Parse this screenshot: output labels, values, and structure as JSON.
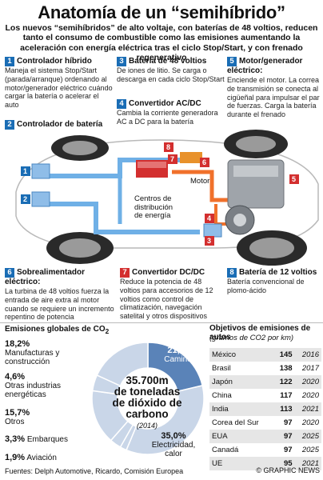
{
  "header": {
    "title": "Anatomía de un “semihíbrido”",
    "subtitle": "Los nuevos “semihíbridos” de alto voltaje, con baterías de 48 voltios, reducen tanto el consumo de combustible como las emisiones aumentando la aceleración con energía eléctrica tras el ciclo Stop/Start, y con frenado regenerativo"
  },
  "components": [
    {
      "num": "1",
      "title": "Controlador híbrido",
      "body": "Maneja el sistema Stop/Start (parada/arranque) ordenando al motor/generador eléctrico cuándo cargar la batería o acelerar el auto"
    },
    {
      "num": "2",
      "title": "Controlador de batería",
      "body": ""
    },
    {
      "num": "3",
      "title": "Batería de 48 voltios",
      "body": "De iones de litio. Se carga o descarga en cada ciclo Stop/Start"
    },
    {
      "num": "4",
      "title": "Convertidor AC/DC",
      "body": "Cambia la corriente generadora AC a DC para la batería"
    },
    {
      "num": "5",
      "title": "Motor/generador eléctrico:",
      "body": "Enciende el motor. La correa de transmisión se conecta al cigüeñal para impulsar el par de fuerzas. Carga la batería durante el frenado"
    },
    {
      "num": "6",
      "title": "Sobrealimentador eléctrico:",
      "body": "La turbina de 48 voltios fuerza la entrada de aire extra al motor cuando se requiere un incremento repentino de potencia"
    },
    {
      "num": "7",
      "title": "Convertidor DC/DC",
      "body": "Reduce la potencia de 48 voltios para accesorios de 12 voltios como control de climatización, navegación satelital y otros dispositivos"
    },
    {
      "num": "8",
      "title": "Batería de 12 voltios",
      "body": "Batería convencional de plomo-ácido"
    }
  ],
  "diagram": {
    "motor_label": "Motor",
    "distribution_label": "Centros de distribución de energía",
    "markers": [
      "1",
      "2",
      "3",
      "4",
      "5",
      "6",
      "7",
      "8"
    ],
    "watermark": "GRAPHIC NEWS"
  },
  "emissions": {
    "title": "Emisiones globales de CO",
    "title_sub": "2",
    "center_value": "35.700m",
    "center_text": "de toneladas de dióxido de carbono",
    "center_year": "(2014)",
    "chart_data": {
      "type": "pie",
      "title": "Emisiones globales de CO2",
      "categories": [
        "Caminos",
        "Electricidad, calor",
        "Aviación",
        "Embarques",
        "Otros",
        "Otras industrias energéticas",
        "Manufacturas y construcción"
      ],
      "values": [
        21.3,
        35.0,
        1.9,
        3.3,
        15.7,
        4.6,
        18.2
      ],
      "colors": [
        "#5a83b8",
        "#c9d6e8",
        "#c9d6e8",
        "#c9d6e8",
        "#c9d6e8",
        "#c9d6e8",
        "#c9d6e8"
      ]
    },
    "labels": [
      {
        "pct": "18,2%",
        "text": "Manufacturas y construcción"
      },
      {
        "pct": "4,6%",
        "text": "Otras industrias energéticas"
      },
      {
        "pct": "15,7%",
        "text": "Otros"
      },
      {
        "pct": "3,3%",
        "text": "Embarques"
      },
      {
        "pct": "1,9%",
        "text": "Aviación"
      },
      {
        "pct": "21,3%",
        "text": "Caminos"
      },
      {
        "pct": "35,0%",
        "text": "Electricidad, calor"
      }
    ]
  },
  "targets": {
    "title": "Objetivos de emisiones de autos",
    "subtitle": "(gramos de CO2 por km)",
    "rows": [
      {
        "country": "México",
        "value": "145",
        "year": "2016"
      },
      {
        "country": "Brasil",
        "value": "138",
        "year": "2017"
      },
      {
        "country": "Japón",
        "value": "122",
        "year": "2020"
      },
      {
        "country": "China",
        "value": "117",
        "year": "2020"
      },
      {
        "country": "India",
        "value": "113",
        "year": "2021"
      },
      {
        "country": "Corea del Sur",
        "value": "97",
        "year": "2020"
      },
      {
        "country": "EUA",
        "value": "97",
        "year": "2025"
      },
      {
        "country": "Canadá",
        "value": "97",
        "year": "2025"
      },
      {
        "country": "UE",
        "value": "95",
        "year": "2021"
      }
    ]
  },
  "footer": {
    "source": "Fuentes: Delph Automotive, Ricardo, Comisión Europea",
    "credit": "© GRAPHIC NEWS"
  },
  "colors": {
    "blue": "#1a6db5",
    "red": "#d32f2f",
    "orange": "#f0712b",
    "pie_dark": "#5a83b8",
    "pie_light": "#c9d6e8"
  }
}
